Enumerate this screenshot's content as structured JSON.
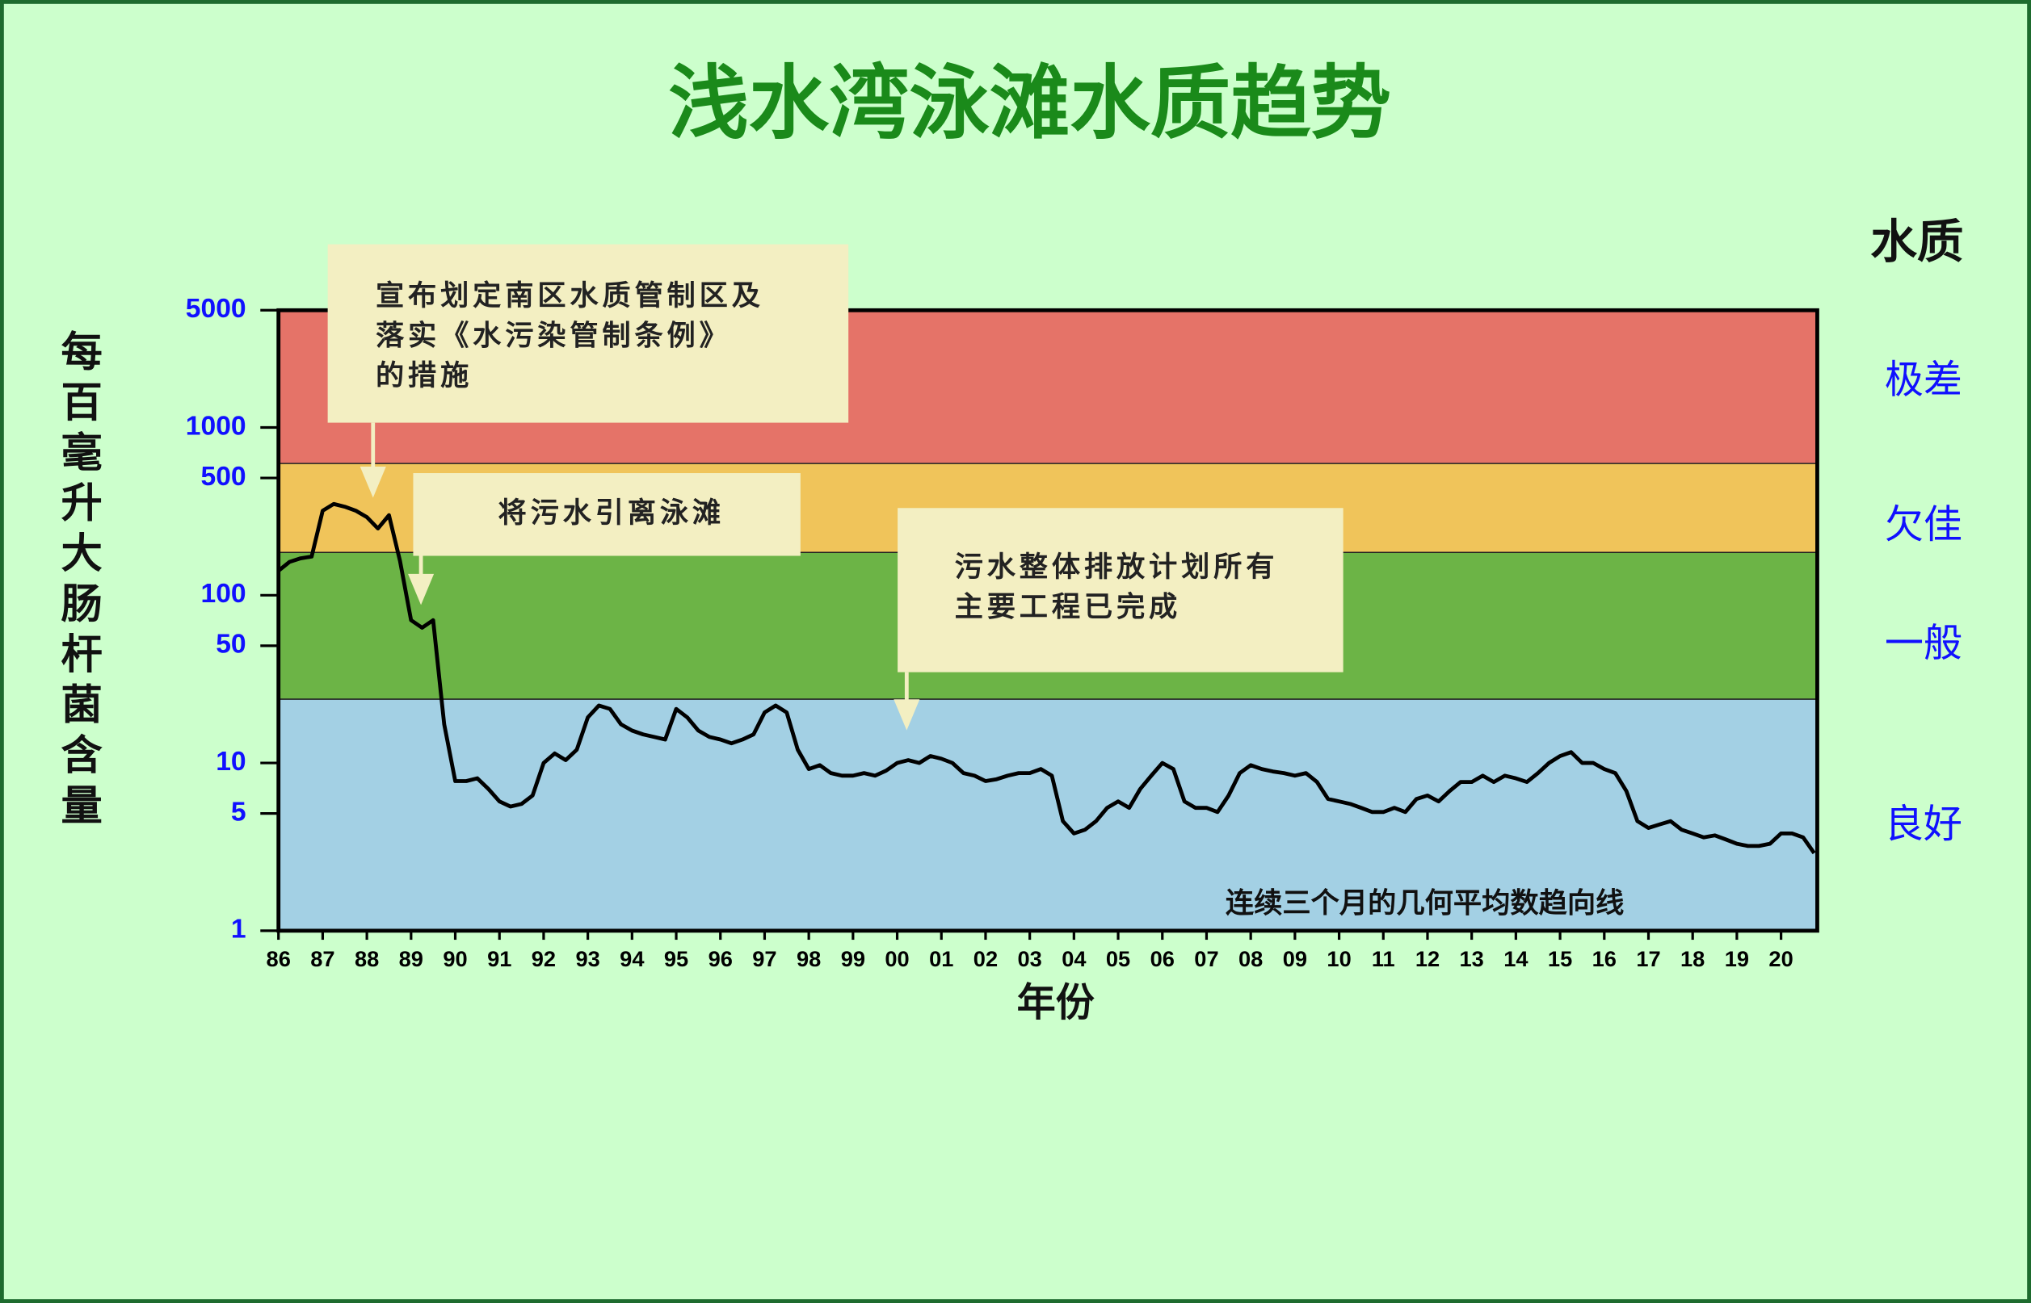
{
  "chart_data": {
    "type": "line",
    "title": "浅水湾泳滩水质趋势",
    "y_label": "每百毫升大肠杆菌含量",
    "x_label": "年份",
    "yscale": "log",
    "grid": false,
    "ylim": [
      1,
      5000
    ],
    "yticks": [
      1,
      5,
      10,
      50,
      100,
      500,
      1000,
      5000
    ],
    "xlim": [
      1986,
      2020.82
    ],
    "xticks": [
      {
        "value": 1986,
        "label": "86"
      },
      {
        "value": 1987,
        "label": "87"
      },
      {
        "value": 1988,
        "label": "88"
      },
      {
        "value": 1989,
        "label": "89"
      },
      {
        "value": 1990,
        "label": "90"
      },
      {
        "value": 1991,
        "label": "91"
      },
      {
        "value": 1992,
        "label": "92"
      },
      {
        "value": 1993,
        "label": "93"
      },
      {
        "value": 1994,
        "label": "94"
      },
      {
        "value": 1995,
        "label": "95"
      },
      {
        "value": 1996,
        "label": "96"
      },
      {
        "value": 1997,
        "label": "97"
      },
      {
        "value": 1998,
        "label": "98"
      },
      {
        "value": 1999,
        "label": "99"
      },
      {
        "value": 2000,
        "label": "00"
      },
      {
        "value": 2001,
        "label": "01"
      },
      {
        "value": 2002,
        "label": "02"
      },
      {
        "value": 2003,
        "label": "03"
      },
      {
        "value": 2004,
        "label": "04"
      },
      {
        "value": 2005,
        "label": "05"
      },
      {
        "value": 2006,
        "label": "06"
      },
      {
        "value": 2007,
        "label": "07"
      },
      {
        "value": 2008,
        "label": "08"
      },
      {
        "value": 2009,
        "label": "09"
      },
      {
        "value": 2010,
        "label": "10"
      },
      {
        "value": 2011,
        "label": "11"
      },
      {
        "value": 2012,
        "label": "12"
      },
      {
        "value": 2013,
        "label": "13"
      },
      {
        "value": 2014,
        "label": "14"
      },
      {
        "value": 2015,
        "label": "15"
      },
      {
        "value": 2016,
        "label": "16"
      },
      {
        "value": 2017,
        "label": "17"
      },
      {
        "value": 2018,
        "label": "18"
      },
      {
        "value": 2019,
        "label": "19"
      },
      {
        "value": 2020,
        "label": "20"
      }
    ],
    "band_title": "水质",
    "bands": [
      {
        "label": "良好",
        "range": [
          1,
          24
        ],
        "color": "#a3d0e4"
      },
      {
        "label": "一般",
        "range": [
          24,
          180
        ],
        "color": "#6cb446"
      },
      {
        "label": "欠佳",
        "range": [
          180,
          610
        ],
        "color": "#f0c45a"
      },
      {
        "label": "极差",
        "range": [
          610,
          5000
        ],
        "color": "#e57368"
      }
    ],
    "annotations": [
      {
        "lines": [
          "宣布划定南区水质管制区及",
          "落实《水污染管制条例》",
          "的措施"
        ]
      },
      {
        "lines": [
          "将污水引离泳滩"
        ]
      },
      {
        "lines": [
          "污水整体排放计划所有",
          "主要工程已完成"
        ]
      }
    ],
    "x": [
      1986,
      1986.25,
      1986.5,
      1986.75,
      1987,
      1987.25,
      1987.5,
      1987.75,
      1988,
      1988.25,
      1988.5,
      1988.75,
      1989,
      1989.25,
      1989.5,
      1989.75,
      1990,
      1990.25,
      1990.5,
      1990.75,
      1991,
      1991.25,
      1991.5,
      1991.75,
      1992,
      1992.25,
      1992.5,
      1992.75,
      1993,
      1993.25,
      1993.5,
      1993.75,
      1994,
      1994.25,
      1994.5,
      1994.75,
      1995,
      1995.25,
      1995.5,
      1995.75,
      1996,
      1996.25,
      1996.5,
      1996.75,
      1997,
      1997.25,
      1997.5,
      1997.75,
      1998,
      1998.25,
      1998.5,
      1998.75,
      1999,
      1999.25,
      1999.5,
      1999.75,
      2000,
      2000.25,
      2000.5,
      2000.75,
      2001,
      2001.25,
      2001.5,
      2001.75,
      2002,
      2002.25,
      2002.5,
      2002.75,
      2003,
      2003.25,
      2003.5,
      2003.75,
      2004,
      2004.25,
      2004.5,
      2004.75,
      2005,
      2005.25,
      2005.5,
      2005.75,
      2006,
      2006.25,
      2006.5,
      2006.75,
      2007,
      2007.25,
      2007.5,
      2007.75,
      2008,
      2008.25,
      2008.5,
      2008.75,
      2009,
      2009.25,
      2009.5,
      2009.75,
      2010,
      2010.25,
      2010.5,
      2010.75,
      2011,
      2011.25,
      2011.5,
      2011.75,
      2012,
      2012.25,
      2012.5,
      2012.75,
      2013,
      2013.25,
      2013.5,
      2013.75,
      2014,
      2014.25,
      2014.5,
      2014.75,
      2015,
      2015.25,
      2015.5,
      2015.75,
      2016,
      2016.25,
      2016.5,
      2016.75,
      2017,
      2017.25,
      2017.5,
      2017.75,
      2018,
      2018.25,
      2018.5,
      2018.75,
      2019,
      2019.25,
      2019.5,
      2019.75,
      2020,
      2020.25,
      2020.5,
      2020.75
    ],
    "series": [
      {
        "name": "连续三个月的几何平均数趋向线",
        "color": "#000000",
        "values": [
          140,
          158,
          166,
          170,
          319,
          350,
          337,
          319,
          292,
          250,
          300,
          160,
          71,
          64,
          71,
          17,
          7.8,
          7.8,
          8.1,
          7.0,
          5.9,
          5.5,
          5.7,
          6.4,
          10,
          11.4,
          10.4,
          12,
          18.7,
          22,
          21,
          17,
          15.6,
          14.8,
          14.3,
          13.8,
          21,
          18.7,
          15.6,
          14.3,
          13.8,
          13.1,
          13.8,
          14.8,
          20,
          22,
          20,
          12,
          9.2,
          9.7,
          8.7,
          8.4,
          8.4,
          8.7,
          8.4,
          9,
          10,
          10.4,
          10,
          11,
          10.6,
          10,
          8.7,
          8.4,
          7.8,
          8,
          8.4,
          8.7,
          8.7,
          9.2,
          8.4,
          4.5,
          3.8,
          4.0,
          4.5,
          5.4,
          5.9,
          5.4,
          7,
          8.4,
          10,
          9.2,
          5.9,
          5.4,
          5.4,
          5.1,
          6.4,
          8.7,
          9.7,
          9.2,
          8.9,
          8.7,
          8.4,
          8.7,
          7.7,
          6.1,
          5.9,
          5.7,
          5.4,
          5.1,
          5.1,
          5.4,
          5.1,
          6.1,
          6.4,
          5.9,
          6.8,
          7.7,
          7.7,
          8.4,
          7.7,
          8.4,
          8.1,
          7.7,
          8.7,
          10,
          11,
          11.6,
          10,
          10,
          9.2,
          8.7,
          6.8,
          4.5,
          4.1,
          4.3,
          4.5,
          4.0,
          3.8,
          3.6,
          3.7,
          3.5,
          3.3,
          3.2,
          3.2,
          3.3,
          3.8,
          3.8,
          3.6,
          2.9
        ]
      }
    ]
  }
}
